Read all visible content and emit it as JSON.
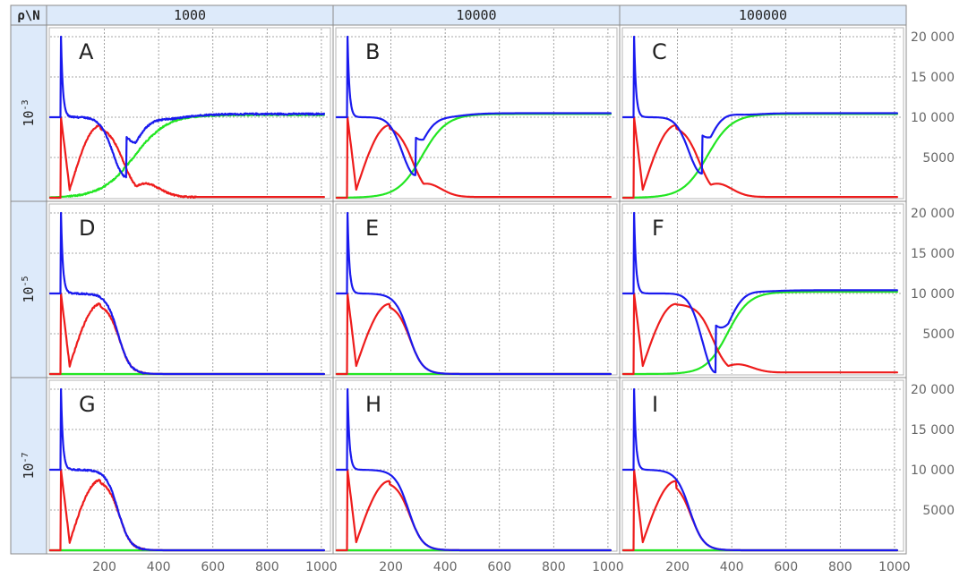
{
  "corner_label": "ρ\\N",
  "chart_data": {
    "type": "line",
    "grid": true,
    "columns": [
      "1000",
      "10000",
      "100000"
    ],
    "rows": [
      {
        "label": "10",
        "exponent": "-3"
      },
      {
        "label": "10",
        "exponent": "-5"
      },
      {
        "label": "10",
        "exponent": "-7"
      }
    ],
    "x_ticks": [
      200,
      400,
      600,
      800,
      1000
    ],
    "y_ticks": [
      5000,
      10000,
      15000,
      20000
    ],
    "y_tick_labels": [
      "5000",
      "10 000",
      "15 000",
      "20 000"
    ],
    "xlim": [
      0,
      1030
    ],
    "ylim": [
      0,
      21000
    ],
    "series_colors": {
      "blue": "#1a1aee",
      "red": "#ee1c1c",
      "green": "#22e622"
    },
    "panels": [
      {
        "label": "A",
        "outcome": "recover",
        "noise": 2,
        "red_peak": 9000,
        "red_peak_t": 185,
        "blue_min": 2600,
        "blue_min_t": 280,
        "green_mid_t": 310,
        "green_width": 60,
        "red_bump": 1700,
        "red_bump_t": 350,
        "red_final": 100,
        "final": 10300
      },
      {
        "label": "B",
        "outcome": "recover",
        "noise": 0,
        "red_peak": 9000,
        "red_peak_t": 195,
        "blue_min": 2800,
        "blue_min_t": 290,
        "green_mid_t": 315,
        "green_width": 45,
        "red_bump": 1700,
        "red_bump_t": 330,
        "red_final": 100,
        "final": 10400
      },
      {
        "label": "C",
        "outcome": "recover",
        "noise": 0,
        "red_peak": 9000,
        "red_peak_t": 195,
        "blue_min": 3000,
        "blue_min_t": 290,
        "green_mid_t": 310,
        "green_width": 45,
        "red_bump": 1700,
        "red_bump_t": 345,
        "red_final": 100,
        "final": 10400
      },
      {
        "label": "D",
        "outcome": "die",
        "noise": 2,
        "red_peak": 8700,
        "red_peak_t": 185,
        "fall_t": 250,
        "fall_width": 22
      },
      {
        "label": "E",
        "outcome": "die",
        "noise": 0,
        "red_peak": 8700,
        "red_peak_t": 195,
        "fall_t": 265,
        "fall_width": 25
      },
      {
        "label": "F",
        "outcome": "recover",
        "noise": 0,
        "red_peak": 8700,
        "red_peak_t": 195,
        "blue_min": 200,
        "blue_min_t": 340,
        "green_mid_t": 385,
        "green_width": 40,
        "red_bump": 1100,
        "red_bump_t": 420,
        "red_final": 200,
        "final": 10200
      },
      {
        "label": "G",
        "outcome": "die",
        "noise": 2,
        "red_peak": 8700,
        "red_peak_t": 185,
        "fall_t": 250,
        "fall_width": 22
      },
      {
        "label": "H",
        "outcome": "die",
        "noise": 0,
        "red_peak": 8600,
        "red_peak_t": 195,
        "fall_t": 265,
        "fall_width": 25
      },
      {
        "label": "I",
        "outcome": "die",
        "noise": 0,
        "red_peak": 8600,
        "red_peak_t": 195,
        "fall_t": 245,
        "fall_width": 25
      }
    ]
  }
}
